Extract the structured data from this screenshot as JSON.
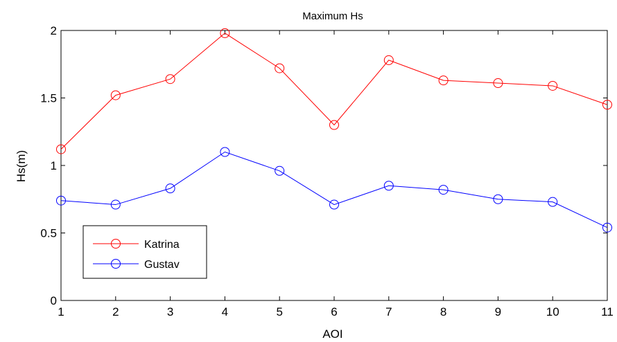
{
  "chart_data": {
    "type": "line",
    "title": "Maximum Hs",
    "xlabel": "AOI",
    "ylabel": "Hs(m)",
    "xlim": [
      1,
      11
    ],
    "ylim": [
      0,
      2
    ],
    "xticks": [
      "1",
      "2",
      "3",
      "4",
      "5",
      "6",
      "7",
      "8",
      "9",
      "10",
      "11"
    ],
    "yticks": [
      "0",
      "0.5",
      "1",
      "1.5",
      "2"
    ],
    "grid": false,
    "legend_position": "bottom-left",
    "x": [
      1,
      2,
      3,
      4,
      5,
      6,
      7,
      8,
      9,
      10,
      11
    ],
    "series": [
      {
        "name": "Katrina",
        "color": "#ff0000",
        "marker": "circle",
        "values": [
          1.12,
          1.52,
          1.64,
          1.98,
          1.72,
          1.3,
          1.78,
          1.63,
          1.61,
          1.59,
          1.45
        ]
      },
      {
        "name": "Gustav",
        "color": "#0000ff",
        "marker": "circle",
        "values": [
          0.74,
          0.71,
          0.83,
          1.1,
          0.96,
          0.71,
          0.85,
          0.82,
          0.75,
          0.73,
          0.54
        ]
      }
    ]
  }
}
